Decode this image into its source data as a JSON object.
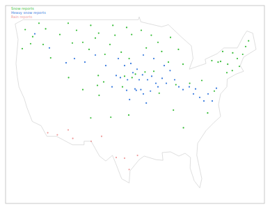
{
  "chart_data": {
    "type": "scatter",
    "tick_labels": false,
    "legend": "top-left",
    "marker": "circle",
    "xlim": [
      -127,
      -65
    ],
    "ylim": [
      23,
      51
    ],
    "series": [
      {
        "name": "Snow reports",
        "color": "#33bb33",
        "x": [
          -122.3,
          -120.5,
          -117.4,
          -119.0,
          -121.0,
          -123.0,
          -118.0,
          -116.2,
          -114.0,
          -111.0,
          -108.5,
          -106.6,
          -104.7,
          -112.0,
          -110.0,
          -105.5,
          -107.0,
          -104.8,
          -103.2,
          -100.8,
          -98.0,
          -96.8,
          -101.3,
          -99.3,
          -97.4,
          -102.0,
          -105.0,
          -108.5,
          -111.9,
          -104.6,
          -103.5,
          -93.3,
          -92.1,
          -94.5,
          -89.6,
          -88.0,
          -85.6,
          -84.5,
          -87.5,
          -90.5,
          -73.8,
          -72.6,
          -71.0,
          -70.2,
          -68.8,
          -75.5,
          -76.1,
          -77.6,
          -74.0,
          -72.7,
          -69.5,
          -71.5,
          -75.0,
          -98.5,
          -95.9,
          -96.7,
          -99.0,
          -93.6,
          -91.5,
          -90.2,
          -86.2,
          -82.9,
          -80.0,
          -77.0,
          -78.6,
          -84.4,
          -86.8,
          -97.5,
          -101.8,
          -106.6
        ],
        "values": [
          47.6,
          46.6,
          47.7,
          48.5,
          45.6,
          44.9,
          45.5,
          43.6,
          46.9,
          45.7,
          45.8,
          48.2,
          47.1,
          48.5,
          47.5,
          46.4,
          44.8,
          41.1,
          44.1,
          46.8,
          47.9,
          46.9,
          48.2,
          44.4,
          43.5,
          45.5,
          39.7,
          39.1,
          40.8,
          38.3,
          40.2,
          45.0,
          46.8,
          47.5,
          44.5,
          43.0,
          44.8,
          42.7,
          46.5,
          45.8,
          42.7,
          44.3,
          42.4,
          44.1,
          46.0,
          43.1,
          43.0,
          43.2,
          41.5,
          41.8,
          45.2,
          43.5,
          44.5,
          41.0,
          41.3,
          40.8,
          39.5,
          41.6,
          41.7,
          38.6,
          39.8,
          40.0,
          40.4,
          38.9,
          35.8,
          33.7,
          36.2,
          35.5,
          35.2,
          35.1
        ]
      },
      {
        "name": "Heavy snow reports",
        "color": "#3377dd",
        "x": [
          -98.0,
          -97.3,
          -96.0,
          -95.7,
          -94.6,
          -94.0,
          -93.3,
          -92.3,
          -95.0,
          -96.5,
          -97.8,
          -99.5,
          -100.5,
          -101.5,
          -98.5,
          -97.0,
          -95.5,
          -94.2,
          -93.0,
          -92.0,
          -91.0,
          -90.5,
          -89.5,
          -88.5,
          -87.6,
          -86.5,
          -85.5,
          -84.5,
          -83.0,
          -82.0,
          -81.5,
          -80.5,
          -79.5,
          -78.5,
          -77.5,
          -76.5,
          -100.0,
          -103.0,
          -105.5,
          -108.0,
          -110.5,
          -112.5,
          -116.5,
          -120.0,
          -94.0,
          -91.5,
          -89.0
        ],
        "values": [
          39.0,
          37.7,
          39.2,
          39.0,
          39.1,
          38.5,
          37.2,
          38.9,
          40.5,
          41.5,
          40.5,
          40.8,
          41.1,
          39.5,
          42.5,
          42.8,
          42.0,
          41.2,
          40.5,
          41.0,
          40.0,
          39.5,
          40.7,
          40.0,
          41.8,
          40.5,
          39.5,
          39.1,
          39.5,
          38.5,
          39.2,
          38.0,
          37.5,
          38.5,
          37.5,
          39.3,
          43.5,
          42.5,
          44.0,
          43.0,
          43.5,
          42.9,
          45.0,
          47.0,
          44.0,
          43.5,
          42.5
        ]
      },
      {
        "name": "Rain reports",
        "color": "#ee9999",
        "x": [
          -112.0,
          -110.9,
          -114.6,
          -106.5,
          -104.0,
          -100.5,
          -97.4,
          -95.4,
          -98.5,
          -116.9
        ],
        "values": [
          33.4,
          32.2,
          32.7,
          31.8,
          32.5,
          29.5,
          27.8,
          29.8,
          29.4,
          33.0
        ]
      }
    ]
  }
}
